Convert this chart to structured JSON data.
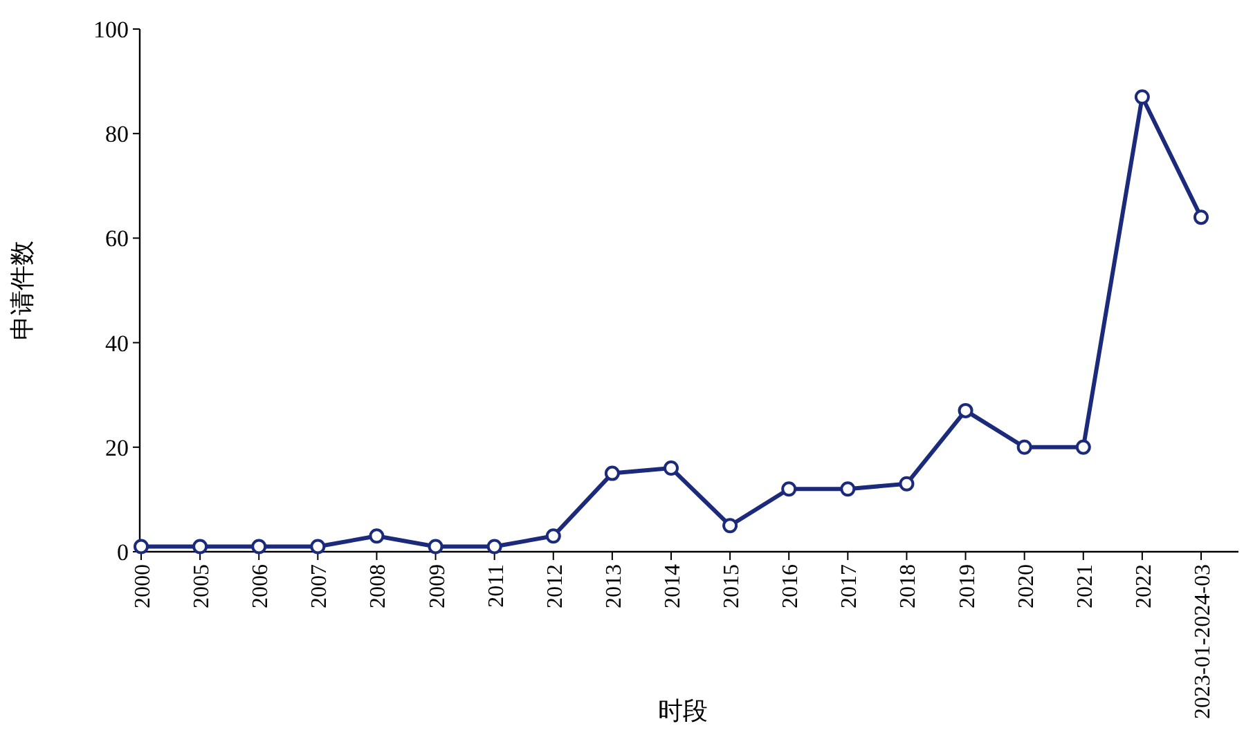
{
  "chart_data": {
    "type": "line",
    "xlabel": "时段",
    "ylabel": "申请件数",
    "categories": [
      "2000",
      "2005",
      "2006",
      "2007",
      "2008",
      "2009",
      "2011",
      "2012",
      "2013",
      "2014",
      "2015",
      "2016",
      "2017",
      "2018",
      "2019",
      "2020",
      "2021",
      "2022",
      "2023-01-2024-03"
    ],
    "series": [
      {
        "color": "#1c2a7c",
        "values": [
          1,
          1,
          1,
          1,
          3,
          1,
          1,
          3,
          15,
          16,
          5,
          12,
          12,
          13,
          27,
          20,
          20,
          87,
          64
        ]
      }
    ],
    "ylim": [
      0,
      100
    ],
    "yticks": [
      0,
      20,
      40,
      60,
      80,
      100
    ],
    "marker": "circle",
    "line_style": "solid",
    "grid": false
  }
}
